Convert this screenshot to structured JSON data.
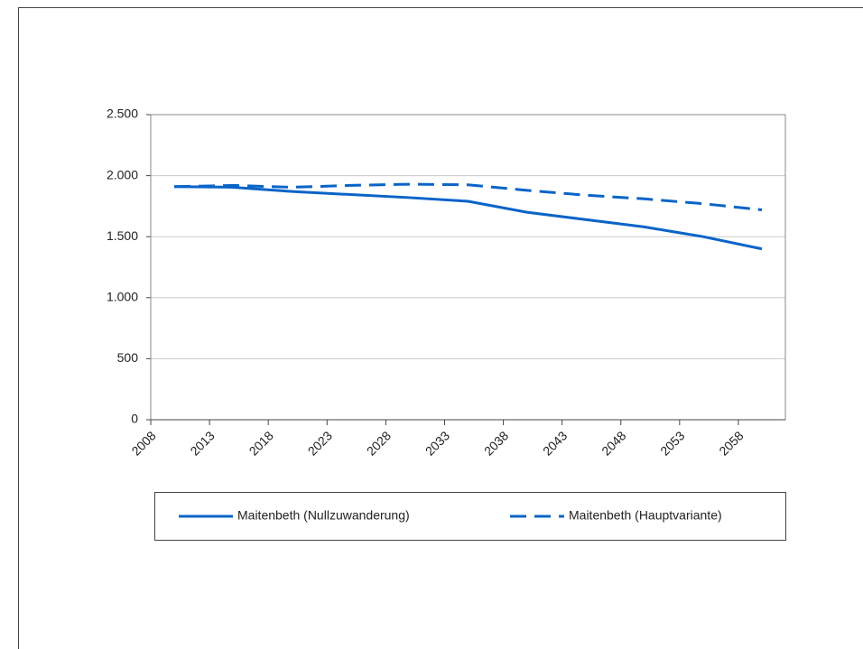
{
  "chart_data": {
    "type": "line",
    "x": [
      2010,
      2015,
      2020,
      2025,
      2030,
      2035,
      2040,
      2045,
      2050,
      2055,
      2060
    ],
    "series": [
      {
        "name": "Maitenbeth (Nullzuwanderung)",
        "color": "#0a64c8",
        "dash": "solid",
        "values": [
          1910,
          1905,
          1870,
          1845,
          1820,
          1790,
          1700,
          1640,
          1580,
          1500,
          1400
        ]
      },
      {
        "name": "Maitenbeth (Hauptvariante)",
        "color": "#0a64c8",
        "dash": "dashed",
        "values": [
          1910,
          1920,
          1905,
          1920,
          1930,
          1925,
          1880,
          1840,
          1810,
          1770,
          1720
        ]
      }
    ],
    "xlim": [
      2008,
      2062
    ],
    "xticks": [
      2008,
      2013,
      2018,
      2023,
      2028,
      2033,
      2038,
      2043,
      2048,
      2053,
      2058
    ],
    "ylim": [
      0,
      2500
    ],
    "yticks": [
      0,
      500,
      {
        "value": 1000,
        "label": "1.000"
      },
      {
        "value": 1500,
        "label": "1.500"
      },
      {
        "value": 2000,
        "label": "2.000"
      },
      {
        "value": 2500,
        "label": "2.500"
      }
    ],
    "grid": true,
    "legend": "bottom"
  }
}
